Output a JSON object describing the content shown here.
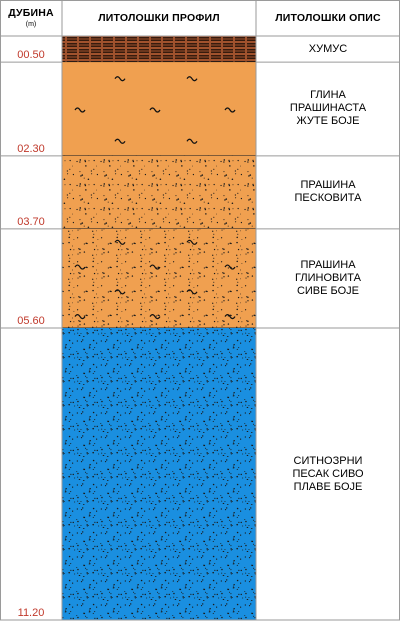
{
  "headers": {
    "depth": "ДУБИНА",
    "depth_unit": "(m)",
    "profile": "ЛИТОЛОШКИ ПРОФИЛ",
    "description": "ЛИТОЛОШКИ ОПИС"
  },
  "total_depth": 11.2,
  "layers": [
    {
      "top": 0.0,
      "bottom": 0.5,
      "depth_label": "00.50",
      "description": "ХУМУС",
      "pattern": "humus",
      "color": "#a0522d"
    },
    {
      "top": 0.5,
      "bottom": 2.3,
      "depth_label": "02.30",
      "description": "ГЛИНА\nПРАШИНАСТА\nЖУТЕ БОЈЕ",
      "pattern": "clay",
      "color": "#f0a050"
    },
    {
      "top": 2.3,
      "bottom": 3.7,
      "depth_label": "03.70",
      "description": "ПРАШИНА\nПЕСКОВИТА",
      "pattern": "silt-sand",
      "color": "#f0a050"
    },
    {
      "top": 3.7,
      "bottom": 5.6,
      "depth_label": "05.60",
      "description": "ПРАШИНА\nГЛИНОВИТА\nСИВЕ БОЈЕ",
      "pattern": "silt-clay",
      "color": "#f0a050"
    },
    {
      "top": 5.6,
      "bottom": 11.2,
      "depth_label": "11.20",
      "description": "СИТНОЗРНИ\nПЕСАК СИВО\nПЛАВЕ БОЈЕ",
      "pattern": "sand",
      "color": "#1a8fe0"
    }
  ],
  "colors": {
    "grid": "#9a9a9a",
    "depth_text": "#c0392b",
    "profile_border": "#000000"
  }
}
